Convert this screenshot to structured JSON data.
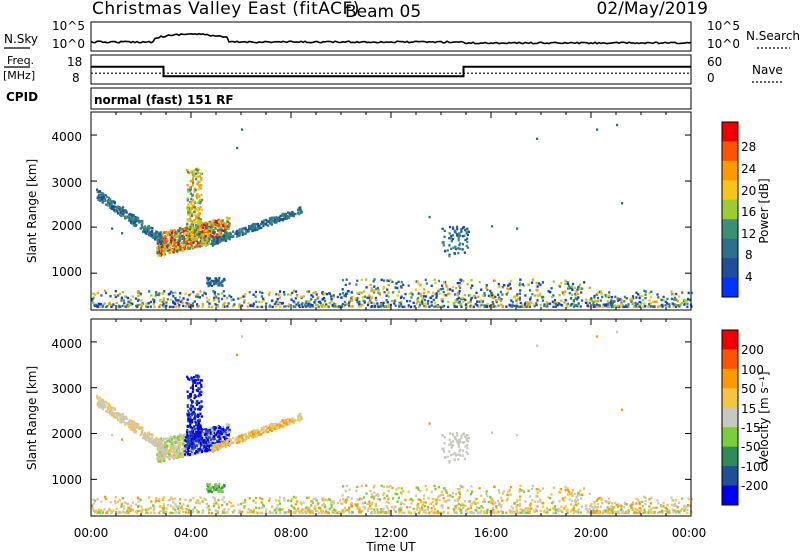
{
  "header": {
    "title": "Christmas Valley East (fitACF)",
    "beam": "Beam 05",
    "date": "02/May/2019"
  },
  "status_panels": {
    "nsky": {
      "label": "N.Sky",
      "ticks_left": [
        "10^5",
        "10^0"
      ],
      "right_label": "N.Search",
      "ticks_right": [
        "10^5",
        "10^0"
      ]
    },
    "freq": {
      "label_line1": "Freq.",
      "label_line2": "[MHz]",
      "ticks_left": [
        "18",
        "8"
      ],
      "right_label": "Nave",
      "ticks_right": [
        "60",
        "0"
      ]
    },
    "cpid": {
      "label": "CPID",
      "value": "normal (fast) 151 RF"
    }
  },
  "colors": {
    "power_scale": [
      "#0033ff",
      "#1f4f9a",
      "#2d6f8f",
      "#3a8f75",
      "#9acd32",
      "#f5c518",
      "#ff9900",
      "#ff5500",
      "#ee0000"
    ],
    "velocity_scale": [
      "#0000ee",
      "#1f4f9a",
      "#2e8b57",
      "#7ccd3a",
      "#c8c8c0",
      "#f5c542",
      "#ff9900",
      "#ff5500",
      "#ee0000"
    ]
  },
  "chart_data": [
    {
      "type": "heatmap",
      "name": "power-panel",
      "xlabel": "",
      "ylabel": "Slant Range [km]",
      "yticks": [
        "1000",
        "2000",
        "3000",
        "4000"
      ],
      "ylim": [
        200,
        4500
      ],
      "colorbar": {
        "label": "Power [dB]",
        "ticks": [
          "28",
          "24",
          "20",
          "16",
          "12",
          "8",
          "4"
        ],
        "range": [
          0,
          32
        ]
      }
    },
    {
      "type": "heatmap",
      "name": "velocity-panel",
      "xlabel": "Time UT",
      "ylabel": "Slant Range [km]",
      "xticks": [
        "00:00",
        "04:00",
        "08:00",
        "12:00",
        "16:00",
        "20:00",
        "00:00"
      ],
      "xlim": [
        "00:00",
        "24:00"
      ],
      "yticks": [
        "1000",
        "2000",
        "3000",
        "4000"
      ],
      "ylim": [
        200,
        4500
      ],
      "colorbar": {
        "label": "Velocity [m s⁻¹]",
        "ticks": [
          "200",
          "100",
          "50",
          "15",
          "-15",
          "-50",
          "-100",
          "-200"
        ],
        "range": [
          -250,
          250
        ]
      }
    },
    {
      "type": "line",
      "name": "freq-nave",
      "series": [
        {
          "name": "Freq.",
          "x": [
            0,
            2.9,
            2.9,
            14.9,
            14.9,
            24
          ],
          "values": [
            14.5,
            14.5,
            10.2,
            10.2,
            14.5,
            14.5
          ]
        },
        {
          "name": "Nave",
          "x": [
            0,
            24
          ],
          "values": [
            22,
            22
          ]
        }
      ]
    }
  ]
}
